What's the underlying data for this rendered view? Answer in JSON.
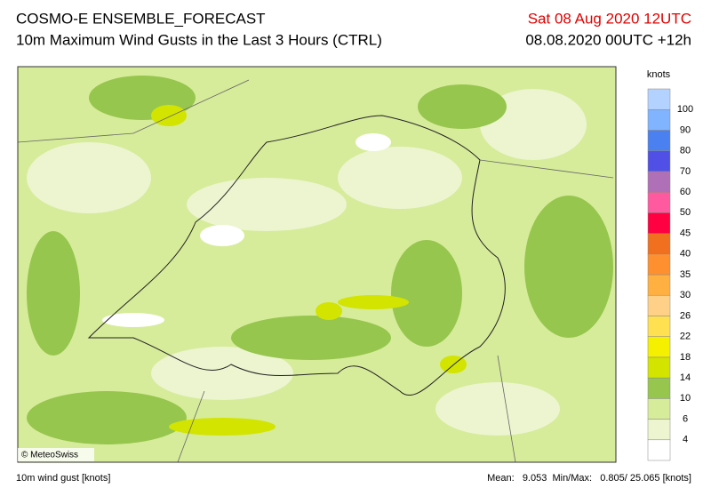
{
  "header": {
    "title": "COSMO-E ENSEMBLE_FORECAST",
    "subtitle": "10m Maximum Wind Gusts in the Last 3 Hours (CTRL)",
    "valid_time": "Sat 08 Aug 2020 12UTC",
    "run_time": "08.08.2020 00UTC +12h"
  },
  "map": {
    "copyright": "© MeteoSwiss"
  },
  "legend": {
    "unit": "knots",
    "levels": [
      "4",
      "6",
      "10",
      "14",
      "18",
      "22",
      "26",
      "30",
      "35",
      "40",
      "45",
      "50",
      "60",
      "70",
      "80",
      "90",
      "100"
    ],
    "colors": [
      "#ffffff",
      "#ecf5d0",
      "#d6ec9a",
      "#96c64e",
      "#d2e400",
      "#f5f000",
      "#ffe050",
      "#ffd088",
      "#ffb040",
      "#ff9030",
      "#f07020",
      "#ff0040",
      "#ff5aa0",
      "#b070b8",
      "#5050e6",
      "#4a80f0",
      "#80b4ff",
      "#b4d2ff"
    ]
  },
  "footer": {
    "left": "10m wind gust [knots]",
    "right": "Mean:   9.053  Min/Max:   0.805/ 25.065 [knots]"
  }
}
